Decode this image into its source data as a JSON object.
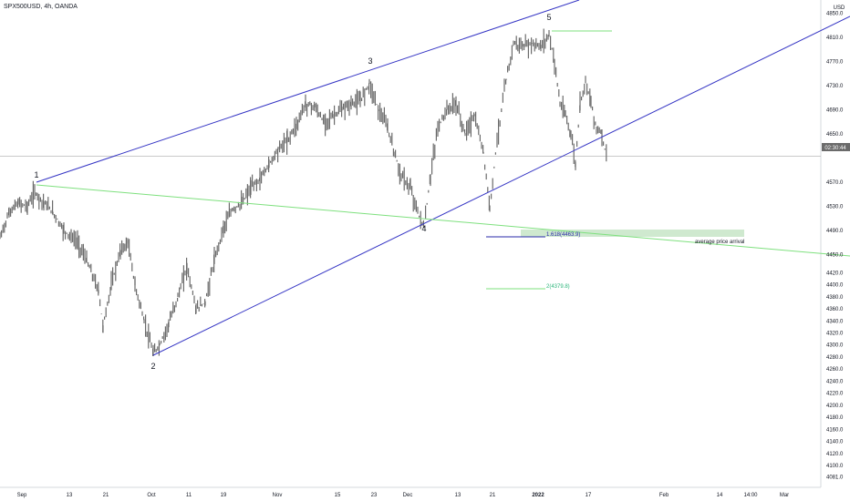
{
  "header": {
    "symbol": "SPX500USD, 4h, OANDA",
    "currency": "USD"
  },
  "colors": {
    "candle": "#6b6b6b",
    "channel_line": "#3434c4",
    "fib_line": "#2a2aa8",
    "green_line": "#7ee07e",
    "green_box": "#cfe9cf",
    "fib_label_blue": "#2a2aa8",
    "fib_label_green": "#2bb57a",
    "axis_text": "#131722",
    "price_label_bg": "#6b6b6b"
  },
  "current_price_label": "02:30:44",
  "annotations": {
    "average_price_arrival": "average price arrival",
    "fib_1618": "1.618(4463.9)",
    "fib_2": "2(4379.8)"
  },
  "chart_data": {
    "type": "line",
    "title": "SPX500USD, 4h, OANDA",
    "ylabel": "USD",
    "ylim": [
      4070,
      4860
    ],
    "grid": false,
    "x_ticks": [
      "Sep",
      "13",
      "21",
      "Oct",
      "11",
      "19",
      "Nov",
      "15",
      "23",
      "Dec",
      "13",
      "21",
      "2022",
      "17",
      "Feb",
      "14",
      "14:00",
      "Mar"
    ],
    "y_ticks": [
      "4850.0",
      "4810.0",
      "4770.0",
      "4730.0",
      "4690.0",
      "4650.0",
      "4570.0",
      "4530.0",
      "4490.0",
      "4450.0",
      "4420.0",
      "4400.0",
      "4380.0",
      "4360.0",
      "4340.0",
      "4320.0",
      "4300.0",
      "4280.0",
      "4260.0",
      "4240.0",
      "4220.0",
      "4200.0",
      "4180.0",
      "4160.0",
      "4140.0",
      "4120.0",
      "4100.0",
      "4081.0"
    ],
    "series": [
      {
        "values": [
          {
            "x": 0,
            "y": 4478
          },
          {
            "x": 10,
            "y": 4520
          },
          {
            "x": 20,
            "y": 4535
          },
          {
            "x": 30,
            "y": 4530
          },
          {
            "x": 38,
            "y": 4553
          },
          {
            "x": 48,
            "y": 4536
          },
          {
            "x": 58,
            "y": 4520
          },
          {
            "x": 70,
            "y": 4490
          },
          {
            "x": 85,
            "y": 4470
          },
          {
            "x": 95,
            "y": 4440
          },
          {
            "x": 108,
            "y": 4390
          },
          {
            "x": 113,
            "y": 4330
          },
          {
            "x": 122,
            "y": 4400
          },
          {
            "x": 132,
            "y": 4455
          },
          {
            "x": 140,
            "y": 4470
          },
          {
            "x": 148,
            "y": 4400
          },
          {
            "x": 158,
            "y": 4340
          },
          {
            "x": 168,
            "y": 4285
          },
          {
            "x": 175,
            "y": 4300
          },
          {
            "x": 185,
            "y": 4335
          },
          {
            "x": 195,
            "y": 4380
          },
          {
            "x": 205,
            "y": 4430
          },
          {
            "x": 215,
            "y": 4360
          },
          {
            "x": 225,
            "y": 4370
          },
          {
            "x": 235,
            "y": 4440
          },
          {
            "x": 245,
            "y": 4495
          },
          {
            "x": 255,
            "y": 4525
          },
          {
            "x": 265,
            "y": 4535
          },
          {
            "x": 275,
            "y": 4560
          },
          {
            "x": 285,
            "y": 4575
          },
          {
            "x": 295,
            "y": 4600
          },
          {
            "x": 305,
            "y": 4625
          },
          {
            "x": 315,
            "y": 4640
          },
          {
            "x": 325,
            "y": 4665
          },
          {
            "x": 335,
            "y": 4700
          },
          {
            "x": 345,
            "y": 4695
          },
          {
            "x": 355,
            "y": 4670
          },
          {
            "x": 365,
            "y": 4680
          },
          {
            "x": 375,
            "y": 4690
          },
          {
            "x": 385,
            "y": 4700
          },
          {
            "x": 395,
            "y": 4705
          },
          {
            "x": 405,
            "y": 4735
          },
          {
            "x": 415,
            "y": 4690
          },
          {
            "x": 425,
            "y": 4660
          },
          {
            "x": 432,
            "y": 4620
          },
          {
            "x": 440,
            "y": 4580
          },
          {
            "x": 450,
            "y": 4560
          },
          {
            "x": 458,
            "y": 4520
          },
          {
            "x": 465,
            "y": 4495
          },
          {
            "x": 472,
            "y": 4580
          },
          {
            "x": 480,
            "y": 4660
          },
          {
            "x": 490,
            "y": 4690
          },
          {
            "x": 500,
            "y": 4700
          },
          {
            "x": 510,
            "y": 4650
          },
          {
            "x": 520,
            "y": 4680
          },
          {
            "x": 530,
            "y": 4620
          },
          {
            "x": 537,
            "y": 4528
          },
          {
            "x": 545,
            "y": 4640
          },
          {
            "x": 555,
            "y": 4740
          },
          {
            "x": 563,
            "y": 4800
          },
          {
            "x": 573,
            "y": 4795
          },
          {
            "x": 583,
            "y": 4800
          },
          {
            "x": 593,
            "y": 4795
          },
          {
            "x": 602,
            "y": 4815
          },
          {
            "x": 608,
            "y": 4770
          },
          {
            "x": 614,
            "y": 4700
          },
          {
            "x": 620,
            "y": 4680
          },
          {
            "x": 626,
            "y": 4650
          },
          {
            "x": 631,
            "y": 4600
          },
          {
            "x": 636,
            "y": 4700
          },
          {
            "x": 642,
            "y": 4740
          },
          {
            "x": 648,
            "y": 4700
          },
          {
            "x": 654,
            "y": 4660
          },
          {
            "x": 660,
            "y": 4650
          },
          {
            "x": 665,
            "y": 4610
          }
        ]
      }
    ],
    "wave_labels": [
      "1",
      "2",
      "3",
      "4",
      "5"
    ],
    "last_price": 4613
  }
}
